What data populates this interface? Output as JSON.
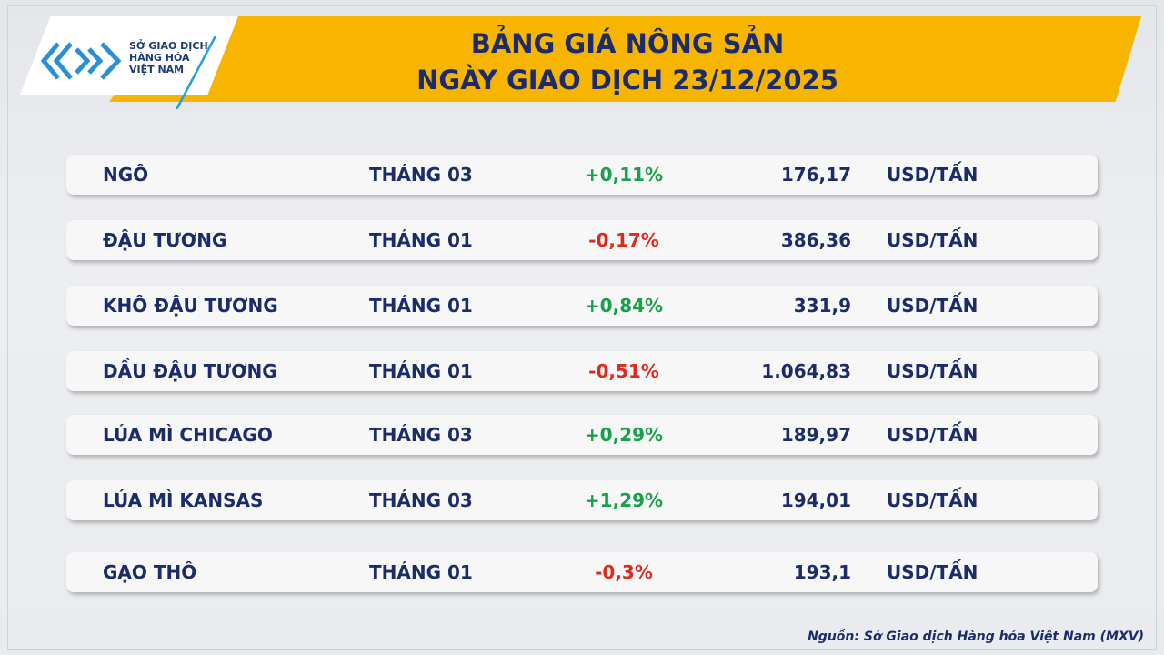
{
  "header": {
    "logo_lines": [
      "SỞ GIAO DỊCH",
      "HÀNG HÓA",
      "VIỆT NAM"
    ],
    "title_lines": [
      "BẢNG GIÁ NÔNG SẢN",
      "NGÀY GIAO DỊCH 23/12/2025"
    ]
  },
  "table": {
    "rows": [
      [
        "NGÔ",
        "THÁNG 03",
        "+0,11%",
        "176,17",
        "USD/TẤN"
      ],
      [
        "ĐẬU TƯƠNG",
        "THÁNG 01",
        "-0,17%",
        "386,36",
        "USD/TẤN"
      ],
      [
        "KHÔ ĐẬU TƯƠNG",
        "THÁNG 01",
        "+0,84%",
        "331,9",
        "USD/TẤN"
      ],
      [
        "DẦU ĐẬU TƯƠNG",
        "THÁNG 01",
        "-0,51%",
        "1.064,83",
        "USD/TẤN"
      ],
      [
        "LÚA MÌ CHICAGO",
        "THÁNG 03",
        "+0,29%",
        "189,97",
        "USD/TẤN"
      ],
      [
        "LÚA MÌ KANSAS",
        "THÁNG 03",
        "+1,29%",
        "194,01",
        "USD/TẤN"
      ],
      [
        "GẠO THÔ",
        "THÁNG 01",
        "-0,3%",
        "193,1",
        "USD/TẤN"
      ]
    ]
  },
  "footer": {
    "source": "Nguồn: Sở Giao dịch Hàng hóa Việt Nam (MXV)"
  }
}
